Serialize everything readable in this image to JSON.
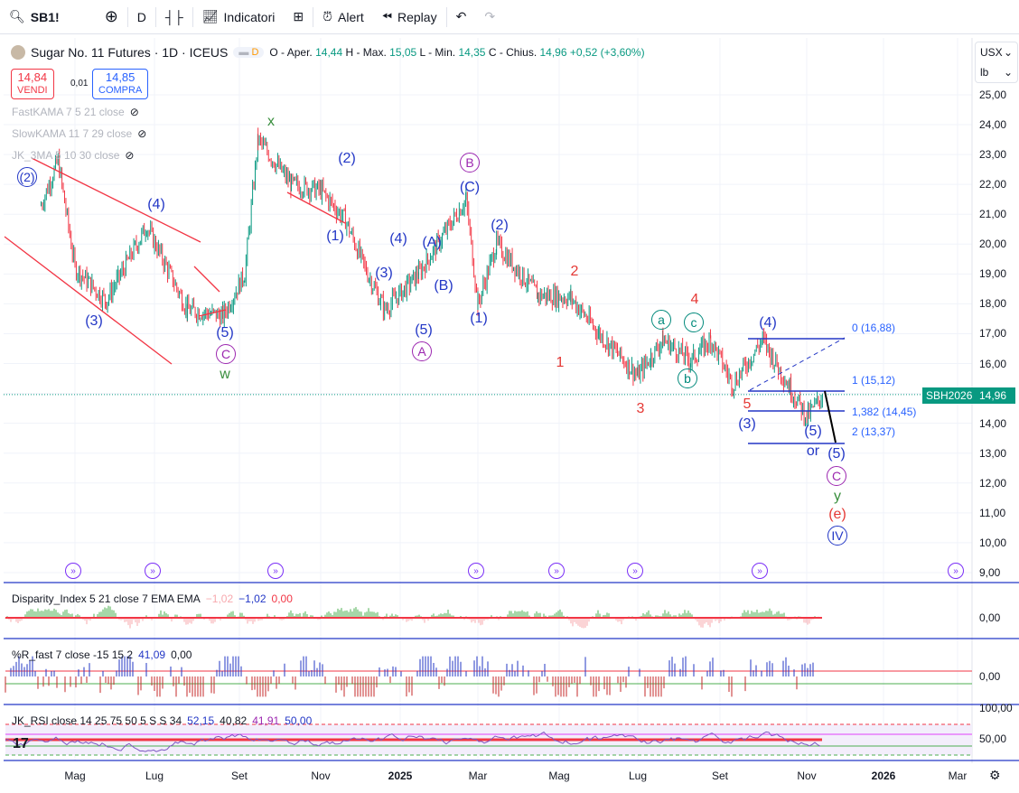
{
  "toolbar": {
    "symbol": "SB1!",
    "interval": "D",
    "indicators": "Indicatori",
    "alert": "Alert",
    "replay": "Replay"
  },
  "legend": {
    "title": "Sugar No. 11 Futures · 1D · ICEUS",
    "badge": "D",
    "o_label": "O - Aper.",
    "o": "14,44",
    "h_label": "H - Max.",
    "h": "15,05",
    "l_label": "L - Min.",
    "l": "14,35",
    "c_label": "C - Chius.",
    "c": "14,96",
    "change": "+0,52 (+3,60%)"
  },
  "trade": {
    "sell_price": "14,84",
    "sell_label": "VENDI",
    "spread": "0,01",
    "buy_price": "14,85",
    "buy_label": "COMPRA"
  },
  "indicators": [
    "FastKAMA 7 5 21 close",
    "SlowKAMA 11 7 29 close",
    "JK_3MA 5 10 30 close"
  ],
  "panes": {
    "disparity": {
      "name": "Disparity_Index 5 21 close 7 EMA EMA",
      "v1": "−1,02",
      "v2": "−1,02",
      "v3": "0,00",
      "axis": "0,00"
    },
    "wr": {
      "name": "%R_fast 7 close -15 15 2",
      "v1": "41,09",
      "v2": "0,00",
      "axis": "0,00"
    },
    "rsi": {
      "name": "JK_RSI close 14 25 75 50 5 S S 34",
      "v1": "52,15",
      "v2": "40,82",
      "v3": "41,91",
      "v4": "50,00",
      "axis_top": "100,00",
      "axis": "50,00"
    }
  },
  "price_axis": {
    "currency": "USX",
    "unit": "lb",
    "ticks": [
      "25,00",
      "24,00",
      "23,00",
      "22,00",
      "21,00",
      "20,00",
      "19,00",
      "18,00",
      "17,00",
      "16,00",
      "15,00",
      "14,00",
      "13,00",
      "12,00",
      "11,00",
      "10,00",
      "9,00"
    ]
  },
  "time_axis": [
    "Mag",
    "Lug",
    "Set",
    "Nov",
    "2025",
    "Mar",
    "Mag",
    "Lug",
    "Set",
    "Nov",
    "2026",
    "Mar"
  ],
  "price_tag": {
    "symbol": "SBH2026",
    "price": "14,96"
  },
  "fib": [
    "0 (16,88)",
    "1 (15,12)",
    "1,382 (14,45)",
    "2 (13,37)"
  ],
  "waves": [
    "(2)",
    "(4)",
    "(3)",
    "(5)",
    "C",
    "w",
    "x",
    "(2)",
    "(1)",
    "(4)",
    "(3)",
    "(A)",
    "(B)",
    "(5)",
    "A",
    "B",
    "(C)",
    "(2)",
    "(1)",
    "2",
    "1",
    "3",
    "4",
    "a",
    "c",
    "b",
    "(4)",
    "5",
    "(3)",
    "(5)",
    "or",
    "(5)",
    "C",
    "y",
    "(e)",
    "IV"
  ],
  "colors": {
    "up": "#089981",
    "down": "#f23645",
    "wave_blue": "#2337c6",
    "wave_purple": "#9c27b0",
    "wave_green": "#388e3c",
    "wave_red": "#e53935",
    "wave_teal": "#00897b"
  },
  "chart_data": {
    "type": "candlestick",
    "symbol": "SB1!",
    "approx_closes": [
      [
        "2024-04-05",
        21.3
      ],
      [
        "2024-04-18",
        22.8
      ],
      [
        "2024-05-01",
        19.2
      ],
      [
        "2024-05-25",
        18.1
      ],
      [
        "2024-06-25",
        20.6
      ],
      [
        "2024-07-25",
        17.8
      ],
      [
        "2024-08-20",
        17.6
      ],
      [
        "2024-09-05",
        19.0
      ],
      [
        "2024-09-15",
        23.5
      ],
      [
        "2024-10-10",
        22.0
      ],
      [
        "2024-11-01",
        21.8
      ],
      [
        "2024-11-20",
        20.8
      ],
      [
        "2024-12-05",
        19.2
      ],
      [
        "2024-12-20",
        17.8
      ],
      [
        "2025-01-15",
        19.0
      ],
      [
        "2025-02-20",
        21.5
      ],
      [
        "2025-03-01",
        18.0
      ],
      [
        "2025-03-15",
        20.0
      ],
      [
        "2025-04-15",
        18.3
      ],
      [
        "2025-05-10",
        18.2
      ],
      [
        "2025-06-01",
        17.0
      ],
      [
        "2025-07-01",
        15.6
      ],
      [
        "2025-07-20",
        16.8
      ],
      [
        "2025-08-10",
        16.1
      ],
      [
        "2025-08-25",
        16.8
      ],
      [
        "2025-09-10",
        15.3
      ],
      [
        "2025-10-01",
        16.8
      ],
      [
        "2025-10-20",
        15.2
      ],
      [
        "2025-11-01",
        14.2
      ],
      [
        "2025-11-14",
        14.96
      ]
    ],
    "ylim": [
      9,
      25.5
    ]
  }
}
